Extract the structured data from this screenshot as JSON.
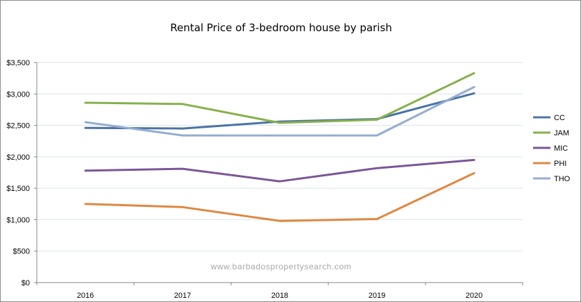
{
  "chart_data": {
    "type": "line",
    "title": "Rental Price of 3-bedroom house by parish",
    "xlabel": "",
    "ylabel": "",
    "categories": [
      "2016",
      "2017",
      "2018",
      "2019",
      "2020"
    ],
    "ylim": [
      0,
      3500
    ],
    "yticks": [
      0,
      500,
      1000,
      1500,
      2000,
      2500,
      3000,
      3500
    ],
    "ytick_labels": [
      "$0",
      "$500",
      "$1,000",
      "$1,500",
      "$2,000",
      "$2,500",
      "$3,000",
      "$3,500"
    ],
    "grid": true,
    "legend_position": "right",
    "watermark": "www.barbadospropertysearch.com",
    "series": [
      {
        "name": "CC",
        "color": "#4a73a5",
        "values": [
          2460,
          2450,
          2560,
          2600,
          3010
        ]
      },
      {
        "name": "JAM",
        "color": "#86b04a",
        "values": [
          2860,
          2840,
          2540,
          2590,
          3330
        ]
      },
      {
        "name": "MIC",
        "color": "#7a5696",
        "values": [
          1780,
          1810,
          1610,
          1820,
          1950
        ]
      },
      {
        "name": "PHI",
        "color": "#e0873f",
        "values": [
          1250,
          1200,
          980,
          1010,
          1740
        ]
      },
      {
        "name": "THO",
        "color": "#93acd0",
        "values": [
          2550,
          2340,
          2340,
          2340,
          3110
        ]
      }
    ]
  }
}
